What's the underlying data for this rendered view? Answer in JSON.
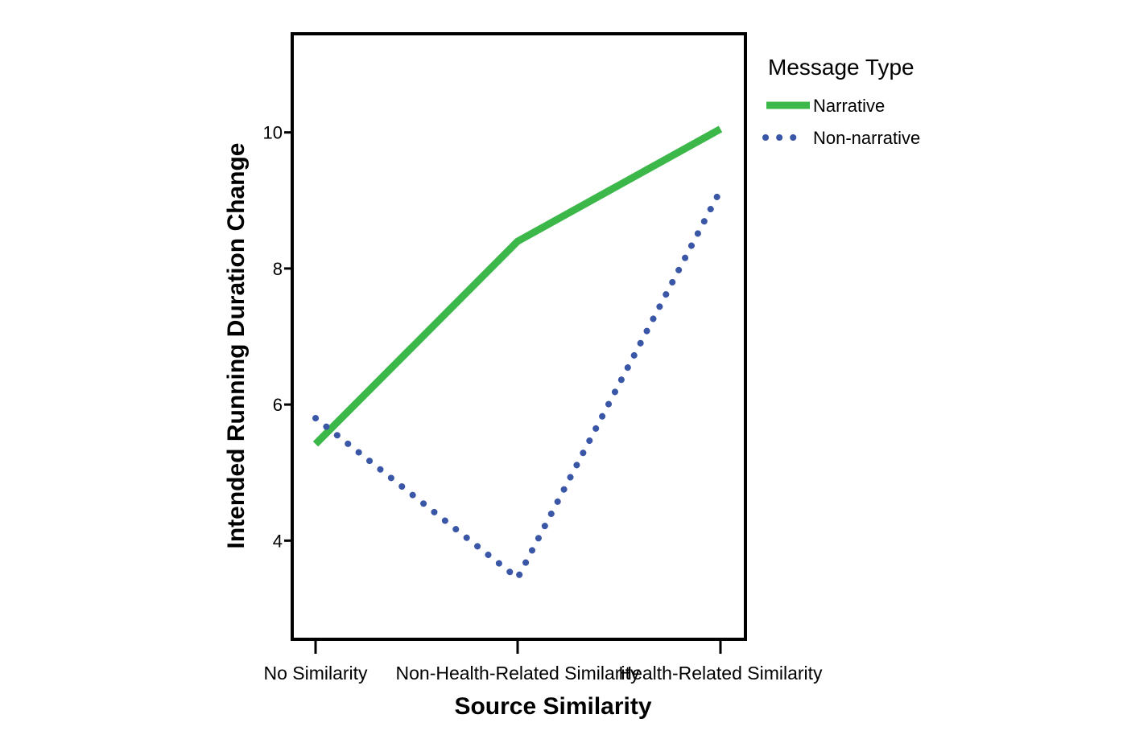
{
  "chart_data": {
    "type": "line",
    "title": "",
    "xlabel": "Source Similarity",
    "ylabel": "Intended Running Duration Change",
    "categories": [
      "No Similarity",
      "Non-Health-Related Similarity",
      "Health-Related Similarity"
    ],
    "ylim": [
      2.55,
      11.45
    ],
    "yticks": [
      4,
      6,
      8,
      10
    ],
    "legend": {
      "title": "Message Type",
      "position": "right, outside plot"
    },
    "series": [
      {
        "name": "Narrative",
        "values": [
          5.42,
          8.4,
          10.05
        ],
        "color": "#3cb84a",
        "style": "solid"
      },
      {
        "name": "Non-narrative",
        "values": [
          5.8,
          3.45,
          9.15
        ],
        "color": "#3a56a6",
        "style": "dotted"
      }
    ],
    "grid": false
  }
}
